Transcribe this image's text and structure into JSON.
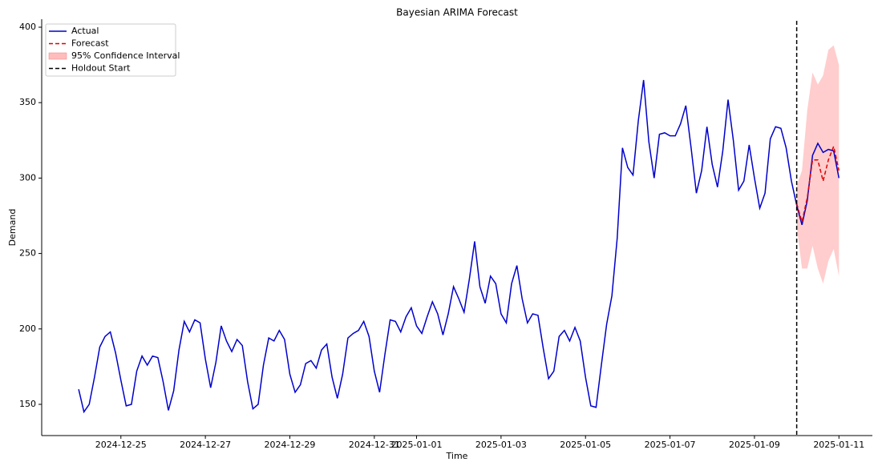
{
  "chart_data": {
    "type": "line",
    "title": "Bayesian ARIMA Forecast",
    "x_label": "Time",
    "y_label": "Demand",
    "xlim": [
      "2024-12-23 03:00",
      "2025-01-11 19:00"
    ],
    "xticks": [
      "2024-12-25",
      "2024-12-27",
      "2024-12-29",
      "2024-12-31",
      "2025-01-01",
      "2025-01-03",
      "2025-01-05",
      "2025-01-07",
      "2025-01-09",
      "2025-01-11"
    ],
    "ylim": [
      129.3,
      405.3
    ],
    "yticks": [
      150,
      200,
      250,
      300,
      350,
      400
    ],
    "grid": false,
    "legend": "upper left",
    "series": [
      {
        "name": "Actual",
        "color": "#0000cc",
        "dashed": false,
        "x": [
          "2024-12-24 00:00",
          "2024-12-24 03:00",
          "2024-12-24 06:00",
          "2024-12-24 09:00",
          "2024-12-24 12:00",
          "2024-12-24 15:00",
          "2024-12-24 18:00",
          "2024-12-24 21:00",
          "2024-12-25 00:00",
          "2024-12-25 03:00",
          "2024-12-25 06:00",
          "2024-12-25 09:00",
          "2024-12-25 12:00",
          "2024-12-25 15:00",
          "2024-12-25 18:00",
          "2024-12-25 21:00",
          "2024-12-26 00:00",
          "2024-12-26 03:00",
          "2024-12-26 06:00",
          "2024-12-26 09:00",
          "2024-12-26 12:00",
          "2024-12-26 15:00",
          "2024-12-26 18:00",
          "2024-12-26 21:00",
          "2024-12-27 00:00",
          "2024-12-27 03:00",
          "2024-12-27 06:00",
          "2024-12-27 09:00",
          "2024-12-27 12:00",
          "2024-12-27 15:00",
          "2024-12-27 18:00",
          "2024-12-27 21:00",
          "2024-12-28 00:00",
          "2024-12-28 03:00",
          "2024-12-28 06:00",
          "2024-12-28 09:00",
          "2024-12-28 12:00",
          "2024-12-28 15:00",
          "2024-12-28 18:00",
          "2024-12-28 21:00",
          "2024-12-29 00:00",
          "2024-12-29 03:00",
          "2024-12-29 06:00",
          "2024-12-29 09:00",
          "2024-12-29 12:00",
          "2024-12-29 15:00",
          "2024-12-29 18:00",
          "2024-12-29 21:00",
          "2024-12-30 00:00",
          "2024-12-30 03:00",
          "2024-12-30 06:00",
          "2024-12-30 09:00",
          "2024-12-30 12:00",
          "2024-12-30 15:00",
          "2024-12-30 18:00",
          "2024-12-30 21:00",
          "2024-12-31 00:00",
          "2024-12-31 03:00",
          "2024-12-31 06:00",
          "2024-12-31 09:00",
          "2024-12-31 12:00",
          "2024-12-31 15:00",
          "2024-12-31 18:00",
          "2024-12-31 21:00",
          "2025-01-01 00:00",
          "2025-01-01 03:00",
          "2025-01-01 06:00",
          "2025-01-01 09:00",
          "2025-01-01 12:00",
          "2025-01-01 15:00",
          "2025-01-01 18:00",
          "2025-01-01 21:00",
          "2025-01-02 00:00",
          "2025-01-02 03:00",
          "2025-01-02 06:00",
          "2025-01-02 09:00",
          "2025-01-02 12:00",
          "2025-01-02 15:00",
          "2025-01-02 18:00",
          "2025-01-02 21:00",
          "2025-01-03 00:00",
          "2025-01-03 03:00",
          "2025-01-03 06:00",
          "2025-01-03 09:00",
          "2025-01-03 12:00",
          "2025-01-03 15:00",
          "2025-01-03 18:00",
          "2025-01-03 21:00",
          "2025-01-04 00:00",
          "2025-01-04 03:00",
          "2025-01-04 06:00",
          "2025-01-04 09:00",
          "2025-01-04 12:00",
          "2025-01-04 15:00",
          "2025-01-04 18:00",
          "2025-01-04 21:00",
          "2025-01-05 00:00",
          "2025-01-05 03:00",
          "2025-01-05 06:00",
          "2025-01-05 09:00",
          "2025-01-05 12:00",
          "2025-01-05 15:00",
          "2025-01-05 18:00",
          "2025-01-05 21:00",
          "2025-01-06 00:00",
          "2025-01-06 03:00",
          "2025-01-06 06:00",
          "2025-01-06 09:00",
          "2025-01-06 12:00",
          "2025-01-06 15:00",
          "2025-01-06 18:00",
          "2025-01-06 21:00",
          "2025-01-07 00:00",
          "2025-01-07 03:00",
          "2025-01-07 06:00",
          "2025-01-07 09:00",
          "2025-01-07 12:00",
          "2025-01-07 15:00",
          "2025-01-07 18:00",
          "2025-01-07 21:00",
          "2025-01-08 00:00",
          "2025-01-08 03:00",
          "2025-01-08 06:00",
          "2025-01-08 09:00",
          "2025-01-08 12:00",
          "2025-01-08 15:00",
          "2025-01-08 18:00",
          "2025-01-08 21:00",
          "2025-01-09 00:00",
          "2025-01-09 03:00",
          "2025-01-09 06:00",
          "2025-01-09 09:00",
          "2025-01-09 12:00",
          "2025-01-09 15:00",
          "2025-01-09 18:00",
          "2025-01-09 21:00",
          "2025-01-10 00:00",
          "2025-01-10 03:00",
          "2025-01-10 06:00",
          "2025-01-10 09:00",
          "2025-01-10 12:00",
          "2025-01-10 15:00",
          "2025-01-10 18:00",
          "2025-01-10 21:00",
          "2025-01-11 00:00"
        ],
        "values": [
          160,
          145,
          150,
          168,
          188,
          195,
          198,
          184,
          166,
          149,
          150,
          172,
          182,
          176,
          182,
          181,
          165,
          146,
          159,
          186,
          205,
          198,
          206,
          204,
          180,
          161,
          178,
          202,
          192,
          185,
          193,
          189,
          165,
          147,
          150,
          176,
          194,
          192,
          199,
          193,
          170,
          158,
          163,
          177,
          179,
          174,
          186,
          190,
          168,
          154,
          170,
          194,
          197,
          199,
          205,
          195,
          172,
          158,
          183,
          206,
          205,
          198,
          208,
          214,
          202,
          197,
          208,
          218,
          210,
          196,
          210,
          228,
          220,
          211,
          233,
          258,
          228,
          217,
          235,
          230,
          210,
          204,
          230,
          242,
          220,
          204,
          210,
          209,
          187,
          167,
          172,
          195,
          199,
          192,
          201,
          192,
          168,
          149,
          148,
          176,
          203,
          222,
          260,
          320,
          307,
          302,
          338,
          365,
          324,
          300,
          329,
          330,
          328,
          328,
          336,
          348,
          320,
          290,
          305,
          334,
          309,
          294,
          318,
          352,
          325,
          292,
          298,
          322,
          300,
          280,
          290,
          326,
          334,
          333,
          320,
          298,
          282,
          269,
          285,
          315,
          323,
          317,
          319,
          318,
          300
        ]
      },
      {
        "name": "Forecast",
        "color": "#e00000",
        "dashed": true,
        "x": [
          "2025-01-10 00:00",
          "2025-01-10 03:00",
          "2025-01-10 06:00",
          "2025-01-10 09:00",
          "2025-01-10 12:00",
          "2025-01-10 15:00",
          "2025-01-10 18:00",
          "2025-01-10 21:00",
          "2025-01-11 00:00"
        ],
        "values": [
          283,
          271,
          287,
          312,
          312,
          298,
          312,
          321,
          305
        ]
      }
    ],
    "interval": {
      "name": "95% Confidence Interval",
      "color": "#ffbcbc",
      "lower": [
        268,
        240,
        240,
        255,
        240,
        230,
        245,
        253,
        235
      ],
      "upper": [
        295,
        305,
        345,
        370,
        362,
        368,
        385,
        388,
        375
      ]
    },
    "holdout": {
      "name": "Holdout Start",
      "color": "#000000",
      "x": "2025-01-10 00:00"
    }
  }
}
